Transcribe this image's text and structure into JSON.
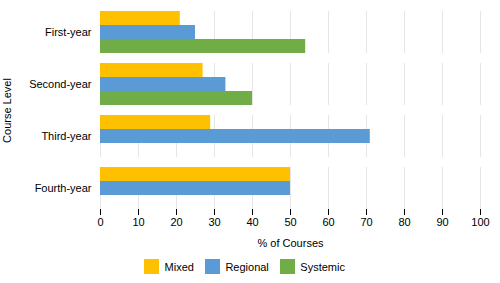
{
  "chart_data": {
    "type": "bar",
    "orientation": "horizontal",
    "categories": [
      "Fourth-year",
      "Third-year",
      "Second-year",
      "First-year"
    ],
    "series": [
      {
        "name": "Mixed",
        "color": "#FFC000",
        "values": [
          50,
          29,
          27,
          21
        ]
      },
      {
        "name": "Regional",
        "color": "#5B9BD5",
        "values": [
          50,
          71,
          33,
          25
        ]
      },
      {
        "name": "Systemic",
        "color": "#70AD47",
        "values": [
          0,
          0,
          40,
          54
        ]
      }
    ],
    "xlabel": "% of Courses",
    "ylabel": "Course Level",
    "xlim": [
      0,
      100
    ],
    "xticks": [
      0,
      10,
      20,
      30,
      40,
      50,
      60,
      70,
      80,
      90,
      100
    ],
    "grid": true,
    "legend": "bottom"
  }
}
